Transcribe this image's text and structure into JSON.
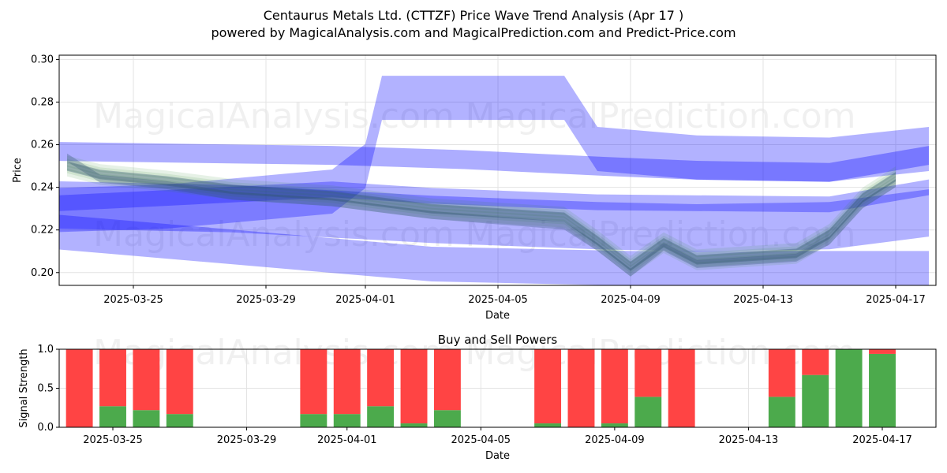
{
  "header": {
    "title": "Centaurus Metals Ltd. (CTTZF) Price Wave Trend Analysis (Apr 17 )",
    "subtitle": "powered by MagicalAnalysis.com and MagicalPrediction.com and Predict-Price.com"
  },
  "watermarks": [
    "MagicalAnalysis.com",
    "MagicalPrediction.com"
  ],
  "colors": {
    "band_blue": "#0000ff",
    "band_green": "#2e8b2e",
    "band_dark": "#2f4f6f",
    "buy": "#4caa4c",
    "sell": "#ff4444"
  },
  "chart_data": [
    {
      "type": "area",
      "xlabel": "Date",
      "ylabel": "Price",
      "xlim": [
        "2025-03-22",
        "2025-04-17"
      ],
      "ylim": [
        0.194,
        0.302
      ],
      "yticks": [
        0.2,
        0.22,
        0.24,
        0.26,
        0.28,
        0.3
      ],
      "ytick_labels": [
        "0.20",
        "0.22",
        "0.24",
        "0.26",
        "0.28",
        "0.30"
      ],
      "xticks": [
        "2025-03-25",
        "2025-03-29",
        "2025-04-01",
        "2025-04-05",
        "2025-04-09",
        "2025-04-13",
        "2025-04-17"
      ],
      "grid": true,
      "series": [
        {
          "x": [
            "2025-03-23",
            "2025-03-24",
            "2025-03-26",
            "2025-03-28",
            "2025-03-31",
            "2025-04-03",
            "2025-04-07",
            "2025-04-08",
            "2025-04-09",
            "2025-04-10",
            "2025-04-11",
            "2025-04-13",
            "2025-04-14",
            "2025-04-15",
            "2025-04-16",
            "2025-04-17"
          ],
          "values": [
            0.25,
            0.246,
            0.243,
            0.239,
            0.236,
            0.23,
            0.226,
            0.215,
            0.203,
            0.214,
            0.206,
            0.208,
            0.209,
            0.218,
            0.235,
            0.245
          ]
        },
        {
          "x": [
            "2025-03-23",
            "2025-03-24",
            "2025-03-26",
            "2025-03-28",
            "2025-03-31",
            "2025-04-03",
            "2025-04-07",
            "2025-04-08",
            "2025-04-09",
            "2025-04-10",
            "2025-04-11",
            "2025-04-13",
            "2025-04-14",
            "2025-04-15",
            "2025-04-16",
            "2025-04-17"
          ],
          "values": [
            0.254,
            0.244,
            0.241,
            0.236,
            0.233,
            0.227,
            0.222,
            0.212,
            0.2,
            0.212,
            0.204,
            0.206,
            0.207,
            0.215,
            0.232,
            0.242
          ]
        }
      ]
    },
    {
      "type": "bar",
      "title": "Buy and Sell Powers",
      "xlabel": "Date",
      "ylabel": "Signal Strength",
      "ylim": [
        0,
        1.0
      ],
      "yticks": [
        0.0,
        0.5,
        1.0
      ],
      "ytick_labels": [
        "0.0",
        "0.5",
        "1.0"
      ],
      "xticks": [
        "2025-03-25",
        "2025-03-29",
        "2025-04-01",
        "2025-04-05",
        "2025-04-09",
        "2025-04-13",
        "2025-04-17"
      ],
      "categories": [
        "2025-03-24",
        "2025-03-25",
        "2025-03-26",
        "2025-03-27",
        "2025-03-31",
        "2025-04-01",
        "2025-04-02",
        "2025-04-03",
        "2025-04-04",
        "2025-04-07",
        "2025-04-08",
        "2025-04-09",
        "2025-04-10",
        "2025-04-11",
        "2025-04-14",
        "2025-04-15",
        "2025-04-16",
        "2025-04-17"
      ],
      "series": [
        {
          "name": "buy",
          "values": [
            0.0,
            0.27,
            0.22,
            0.17,
            0.17,
            0.17,
            0.27,
            0.05,
            0.22,
            0.05,
            0.0,
            0.05,
            0.39,
            0.0,
            0.39,
            0.67,
            1.0,
            0.94
          ]
        },
        {
          "name": "sell",
          "values": [
            1.0,
            0.73,
            0.78,
            0.83,
            0.83,
            0.83,
            0.73,
            0.95,
            0.78,
            0.95,
            1.0,
            0.95,
            0.61,
            1.0,
            0.61,
            0.33,
            0.0,
            0.06
          ]
        }
      ]
    }
  ]
}
